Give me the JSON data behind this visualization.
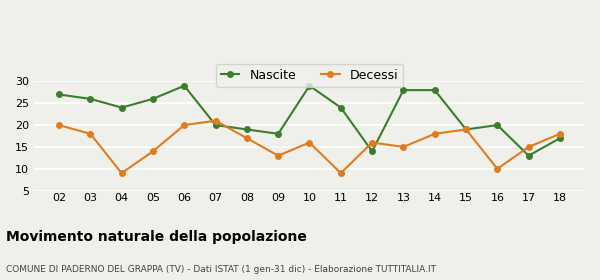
{
  "x_labels": [
    "02",
    "03",
    "04",
    "05",
    "06",
    "07",
    "08",
    "09",
    "10",
    "11",
    "12",
    "13",
    "14",
    "15",
    "16",
    "17",
    "18"
  ],
  "nascite": [
    27,
    26,
    24,
    26,
    29,
    20,
    19,
    18,
    29,
    24,
    14,
    28,
    28,
    19,
    20,
    13,
    17
  ],
  "decessi": [
    20,
    18,
    9,
    14,
    20,
    21,
    17,
    13,
    16,
    9,
    16,
    15,
    18,
    19,
    10,
    15,
    18
  ],
  "nascite_color": "#3a7d2c",
  "decessi_color": "#e07b20",
  "title": "Movimento naturale della popolazione",
  "subtitle": "COMUNE DI PADERNO DEL GRAPPA (TV) - Dati ISTAT (1 gen-31 dic) - Elaborazione TUTTITALIA.IT",
  "ylim": [
    5,
    30
  ],
  "yticks": [
    5,
    10,
    15,
    20,
    25,
    30
  ],
  "background_color": "#f0f0eb",
  "grid_color": "#ffffff",
  "legend_nascite": "Nascite",
  "legend_decessi": "Decessi"
}
